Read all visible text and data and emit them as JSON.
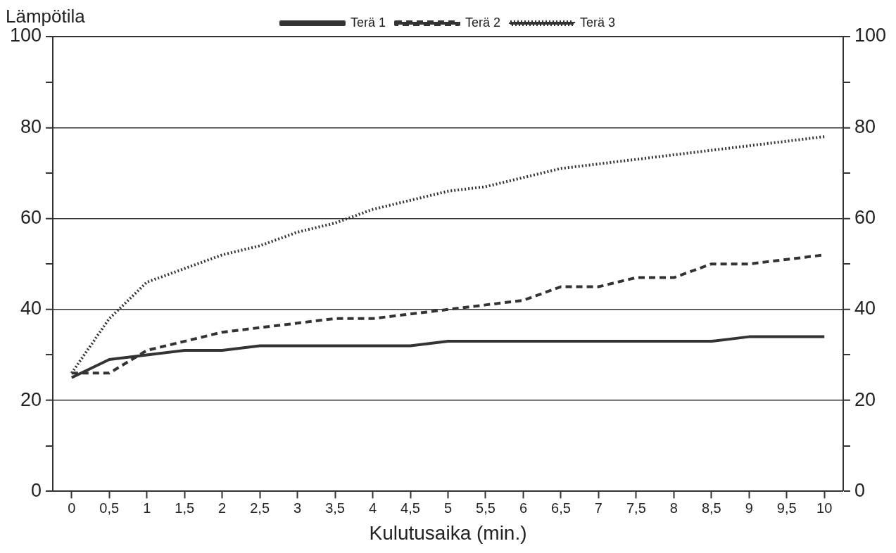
{
  "chart_data": {
    "type": "line",
    "xlabel": "Kulutusaika (min.)",
    "ylabel": "Lämpötila",
    "categories": [
      "0",
      "0,5",
      "1",
      "1,5",
      "2",
      "2,5",
      "3",
      "3,5",
      "4",
      "4,5",
      "5",
      "5,5",
      "6",
      "6,5",
      "7",
      "7,5",
      "8",
      "8,5",
      "9",
      "9,5",
      "10"
    ],
    "series": [
      {
        "name": "Terä 1",
        "color": "#333333",
        "line_style": "solid",
        "values": [
          25,
          29,
          30,
          31,
          31,
          32,
          32,
          32,
          32,
          32,
          33,
          33,
          33,
          33,
          33,
          33,
          33,
          33,
          34,
          34,
          34
        ]
      },
      {
        "name": "Terä 2",
        "color": "#333333",
        "line_style": "dashed",
        "values": [
          26,
          26,
          31,
          33,
          35,
          36,
          37,
          38,
          38,
          39,
          40,
          41,
          42,
          45,
          45,
          47,
          47,
          50,
          50,
          51,
          52
        ]
      },
      {
        "name": "Terä 3",
        "color": "#333333",
        "line_style": "dotted",
        "values": [
          26,
          38,
          46,
          49,
          52,
          54,
          57,
          59,
          62,
          64,
          66,
          67,
          69,
          71,
          72,
          73,
          74,
          75,
          76,
          77,
          78
        ]
      }
    ],
    "ylim": [
      0,
      100
    ],
    "yticks": [
      0,
      {
        "value": 10,
        "label": null
      },
      20,
      {
        "value": 30,
        "label": null
      },
      40,
      {
        "value": 50,
        "label": null
      },
      60,
      {
        "value": 70,
        "label": null
      },
      80,
      {
        "value": 90,
        "label": null
      },
      100
    ],
    "y2lim": [
      0,
      100
    ],
    "y2ticks": [
      0,
      {
        "value": 10,
        "label": null
      },
      20,
      {
        "value": 30,
        "label": null
      },
      40,
      {
        "value": 50,
        "label": null
      },
      60,
      {
        "value": 70,
        "label": null
      },
      80,
      {
        "value": 90,
        "label": null
      },
      100
    ],
    "grid": "y",
    "legend": "top",
    "marker": "none"
  }
}
